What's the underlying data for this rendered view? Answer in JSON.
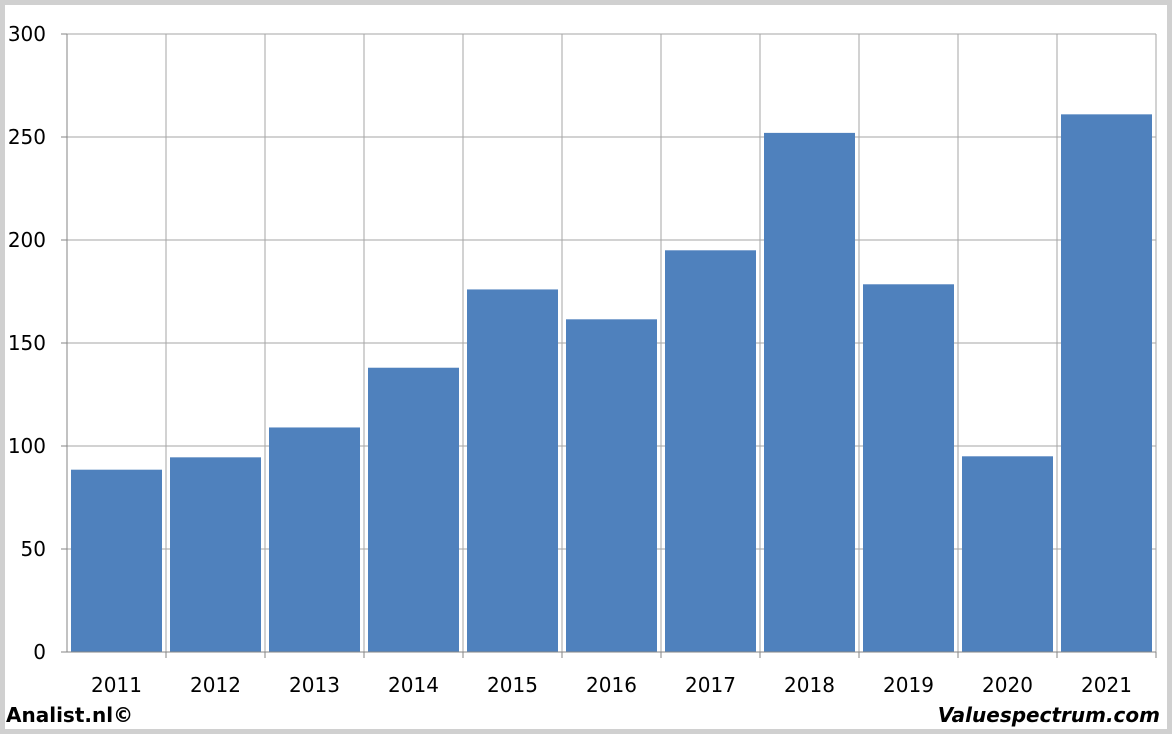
{
  "chart_data": {
    "type": "bar",
    "categories": [
      "2011",
      "2012",
      "2013",
      "2014",
      "2015",
      "2016",
      "2017",
      "2018",
      "2019",
      "2020",
      "2021"
    ],
    "values": [
      88.5,
      94.5,
      109,
      138,
      176,
      161.5,
      195,
      252,
      178.5,
      95,
      261
    ],
    "title": "",
    "xlabel": "",
    "ylabel": "",
    "ylim": [
      0,
      300
    ],
    "yticks": [
      0,
      50,
      100,
      150,
      200,
      250,
      300
    ],
    "ytick_labels": [
      "0",
      "50",
      "100",
      "150",
      "200",
      "250",
      "300"
    ],
    "grid": true,
    "legend": "none",
    "bar_color": "#4f81bd",
    "grid_color": "#a6a6a6"
  },
  "footer": {
    "left": "Analist.nl©",
    "right": "Valuespectrum.com"
  }
}
